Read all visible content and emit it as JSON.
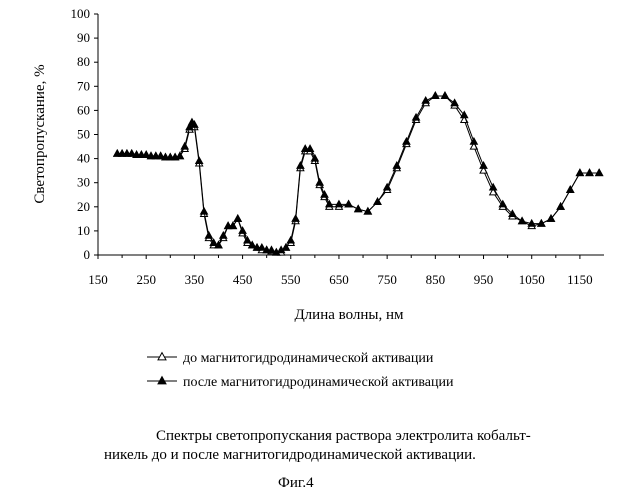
{
  "chart_data": {
    "type": "line",
    "xlabel": "Длина волны, нм",
    "ylabel": "Светопропускание, %",
    "xlim": [
      150,
      1200
    ],
    "ylim": [
      0,
      100
    ],
    "xticks": [
      150,
      250,
      350,
      450,
      550,
      650,
      750,
      850,
      950,
      1050,
      1150
    ],
    "yticks": [
      0,
      10,
      20,
      30,
      40,
      50,
      60,
      70,
      80,
      90,
      100
    ],
    "grid": false,
    "legend_position": "bottom",
    "series": [
      {
        "name": "до магнитогидродинамической активации",
        "marker": "open-triangle",
        "x": [
          190,
          200,
          210,
          220,
          230,
          240,
          250,
          260,
          270,
          280,
          290,
          300,
          310,
          320,
          330,
          340,
          345,
          350,
          360,
          370,
          380,
          390,
          400,
          410,
          420,
          430,
          440,
          450,
          460,
          470,
          480,
          490,
          500,
          510,
          520,
          530,
          540,
          550,
          560,
          570,
          580,
          590,
          600,
          610,
          620,
          630,
          650,
          670,
          690,
          710,
          730,
          750,
          770,
          790,
          810,
          830,
          850,
          870,
          890,
          910,
          930,
          950,
          970,
          990,
          1010,
          1030,
          1050,
          1070,
          1090,
          1110,
          1130,
          1150,
          1170,
          1190
        ],
        "y": [
          42,
          42,
          42,
          42,
          41.5,
          41.5,
          41.5,
          41,
          41,
          41,
          40.5,
          40.5,
          40.5,
          41,
          44,
          52,
          54,
          53,
          38,
          17,
          7,
          4,
          4,
          7,
          12,
          12,
          15,
          9,
          5,
          4,
          3,
          2,
          2,
          1.5,
          1,
          1,
          3,
          5,
          14,
          36,
          43,
          43,
          39,
          29,
          24,
          20,
          20,
          21,
          19,
          18,
          22,
          27,
          36,
          46,
          56,
          63,
          66,
          66,
          62,
          56,
          45,
          35,
          26,
          20,
          16,
          14,
          12,
          13,
          15,
          20,
          27,
          34,
          34,
          34
        ]
      },
      {
        "name": "после магнитогидродинамической активации",
        "marker": "filled-triangle",
        "x": [
          190,
          200,
          210,
          220,
          230,
          240,
          250,
          260,
          270,
          280,
          290,
          300,
          310,
          320,
          330,
          340,
          345,
          350,
          360,
          370,
          380,
          390,
          400,
          410,
          420,
          430,
          440,
          450,
          460,
          470,
          480,
          490,
          500,
          510,
          520,
          530,
          540,
          550,
          560,
          570,
          580,
          590,
          600,
          610,
          620,
          630,
          650,
          670,
          690,
          710,
          730,
          750,
          770,
          790,
          810,
          830,
          850,
          870,
          890,
          910,
          930,
          950,
          970,
          990,
          1010,
          1030,
          1050,
          1070,
          1090,
          1110,
          1130,
          1150,
          1170,
          1190
        ],
        "y": [
          42,
          42,
          42,
          42,
          41.5,
          41.5,
          41.5,
          41,
          41,
          41,
          40.5,
          40.5,
          40.5,
          41,
          45,
          53,
          55,
          54,
          39,
          18,
          8,
          5,
          4,
          8,
          12,
          12,
          15,
          10,
          6,
          4,
          3,
          3,
          2,
          2,
          1,
          2,
          3,
          6,
          15,
          37,
          44,
          44,
          40,
          30,
          25,
          21,
          21,
          21,
          19,
          18,
          22,
          28,
          37,
          47,
          57,
          64,
          66,
          66,
          63,
          58,
          47,
          37,
          28,
          21,
          17,
          14,
          13,
          13,
          15,
          20,
          27,
          34,
          34,
          34
        ]
      }
    ]
  },
  "caption": {
    "line1": "Спектры светопропускания раствора электролита кобальт-",
    "line2": "никель до и после магнитогидродинамической активации.",
    "figure_label": "Фиг.4"
  }
}
